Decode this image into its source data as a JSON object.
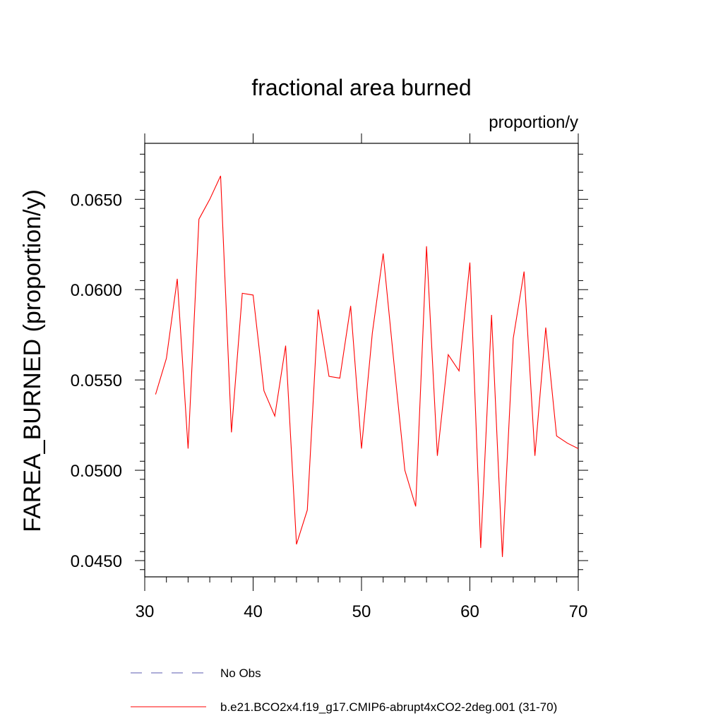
{
  "chart_data": {
    "type": "line",
    "title": "fractional area burned",
    "units_label": "proportion/y",
    "ylabel": "FAREA_BURNED  (proportion/y)",
    "xlabel": "",
    "xlim": [
      30,
      70
    ],
    "ylim": [
      0.0441,
      0.0681
    ],
    "x_ticks": [
      30,
      40,
      50,
      60,
      70
    ],
    "x_tick_labels": [
      "30",
      "40",
      "50",
      "60",
      "70"
    ],
    "y_ticks": [
      0.045,
      0.05,
      0.055,
      0.06,
      0.065
    ],
    "y_tick_labels": [
      "0.0450",
      "0.0500",
      "0.0550",
      "0.0600",
      "0.0650"
    ],
    "grid": false,
    "legend_placement": "bottom",
    "series": [
      {
        "name": "No Obs",
        "color": "#5b5bb0",
        "dash": "dashed",
        "values": []
      },
      {
        "name": "b.e21.BCO2x4.f19_g17.CMIP6-abrupt4xCO2-2deg.001 (31-70)",
        "color": "#ff0000",
        "dash": "solid",
        "x": [
          31,
          32,
          33,
          34,
          35,
          36,
          37,
          38,
          39,
          40,
          41,
          42,
          43,
          44,
          45,
          46,
          47,
          48,
          49,
          50,
          51,
          52,
          53,
          54,
          55,
          56,
          57,
          58,
          59,
          60,
          61,
          62,
          63,
          64,
          65,
          66,
          67,
          68,
          69,
          70
        ],
        "values": [
          0.0542,
          0.0562,
          0.0606,
          0.0512,
          0.0639,
          0.065,
          0.0663,
          0.0521,
          0.0598,
          0.0597,
          0.0544,
          0.053,
          0.0569,
          0.0459,
          0.0478,
          0.0589,
          0.0552,
          0.0551,
          0.0591,
          0.0512,
          0.0576,
          0.062,
          0.0559,
          0.05,
          0.048,
          0.0624,
          0.0508,
          0.0564,
          0.0555,
          0.0615,
          0.0457,
          0.0586,
          0.0452,
          0.0573,
          0.061,
          0.0508,
          0.0579,
          0.0519,
          0.0515,
          0.0512
        ]
      }
    ]
  }
}
